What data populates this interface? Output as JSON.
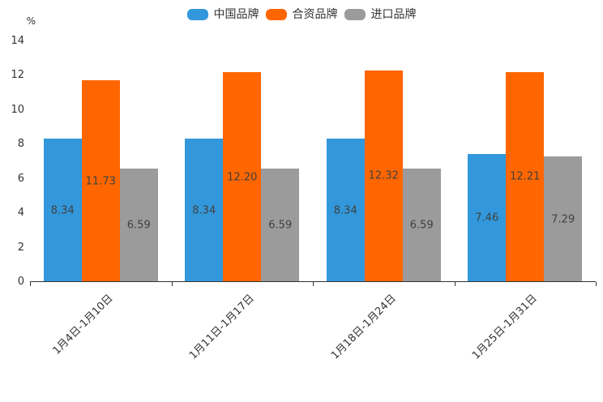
{
  "chart_data": {
    "type": "bar",
    "title": "",
    "unit_label": "%",
    "categories": [
      "1月4日-1月10日",
      "1月11日-1月17日",
      "1月18日-1月24日",
      "1月25日-1月31日"
    ],
    "series": [
      {
        "name": "中国品牌",
        "color": "#3398DB",
        "values": [
          8.34,
          8.34,
          8.34,
          7.46
        ]
      },
      {
        "name": "合资品牌",
        "color": "#FF6600",
        "values": [
          11.73,
          12.2,
          12.32,
          12.21
        ]
      },
      {
        "name": "进口品牌",
        "color": "#9B9B9B",
        "values": [
          6.59,
          6.59,
          6.59,
          7.29
        ]
      }
    ],
    "value_label_decimals": 2,
    "y_axis": {
      "min": 0,
      "max": 14,
      "ticks": [
        0,
        2,
        4,
        6,
        8,
        10,
        12,
        14
      ]
    },
    "legend_position": "top",
    "grid": false,
    "axis_color": "#333333",
    "value_label_color": "#404040",
    "background_color": "#ffffff"
  }
}
